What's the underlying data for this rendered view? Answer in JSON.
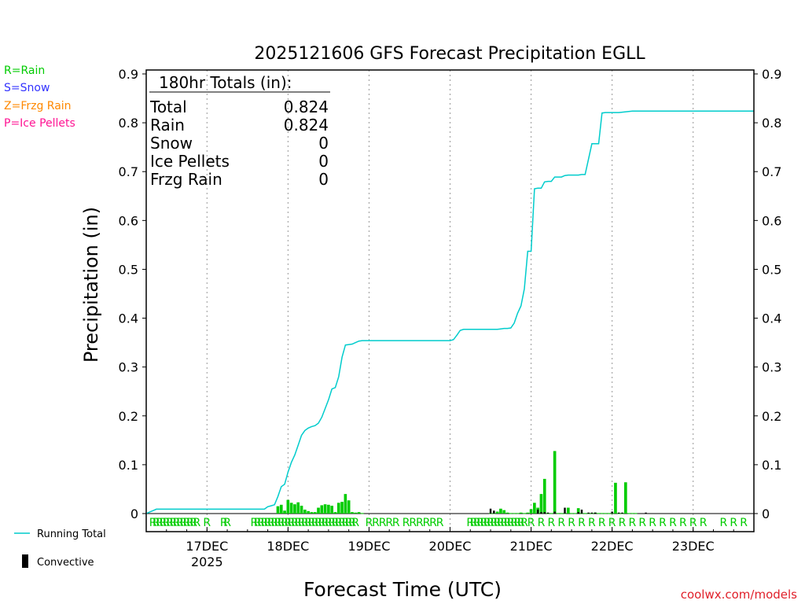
{
  "chart_data": {
    "type": "bar+line",
    "title": "2025121606 GFS Forecast Precipitation EGLL",
    "ylabel": "Precipitation (in)",
    "xlabel": "Forecast Time (UTC)",
    "ylim": [
      0,
      0.9
    ],
    "yticks": [
      "0",
      "0.1",
      "0.2",
      "0.3",
      "0.4",
      "0.5",
      "0.6",
      "0.7",
      "0.8",
      "0.9"
    ],
    "xrange_hours": [
      0,
      180
    ],
    "xticks": [
      {
        "hour": 18,
        "label": "17DEC",
        "sublabel": "2025"
      },
      {
        "hour": 42,
        "label": "18DEC",
        "sublabel": ""
      },
      {
        "hour": 66,
        "label": "19DEC",
        "sublabel": ""
      },
      {
        "hour": 90,
        "label": "20DEC",
        "sublabel": ""
      },
      {
        "hour": 114,
        "label": "21DEC",
        "sublabel": ""
      },
      {
        "hour": 138,
        "label": "22DEC",
        "sublabel": ""
      },
      {
        "hour": 162,
        "label": "23DEC",
        "sublabel": ""
      }
    ],
    "totals": {
      "header": "180hr Totals (in):",
      "rows": [
        {
          "label": "Total",
          "value": "0.824"
        },
        {
          "label": "Rain",
          "value": "0.824"
        },
        {
          "label": "Snow",
          "value": "0"
        },
        {
          "label": "Ice Pellets",
          "value": "0"
        },
        {
          "label": "Frzg Rain",
          "value": "0"
        }
      ]
    },
    "running_total": {
      "name": "Running Total",
      "color": "#00cccc",
      "x": [
        0,
        1,
        2,
        3,
        4,
        6,
        10,
        20,
        30,
        35,
        36,
        37,
        38,
        39,
        40,
        41,
        42,
        43,
        44,
        45,
        46,
        47,
        48,
        49,
        50,
        51,
        52,
        53,
        54,
        55,
        56,
        57,
        58,
        59,
        60,
        61,
        62,
        63,
        64,
        65,
        66,
        90,
        91,
        92,
        93,
        94,
        95,
        96,
        100,
        104,
        105,
        106,
        107,
        108,
        109,
        110,
        111,
        112,
        113,
        114,
        115,
        116,
        117,
        118,
        119,
        120,
        121,
        122,
        123,
        124,
        125,
        126,
        127,
        128,
        129,
        130,
        132,
        134,
        135,
        136,
        137,
        138,
        139,
        140,
        144,
        180
      ],
      "y": [
        0.0,
        0.003,
        0.006,
        0.009,
        0.009,
        0.009,
        0.009,
        0.009,
        0.009,
        0.009,
        0.014,
        0.016,
        0.018,
        0.035,
        0.055,
        0.06,
        0.085,
        0.105,
        0.12,
        0.14,
        0.16,
        0.17,
        0.175,
        0.178,
        0.18,
        0.185,
        0.197,
        0.215,
        0.233,
        0.255,
        0.258,
        0.28,
        0.32,
        0.345,
        0.346,
        0.347,
        0.35,
        0.353,
        0.354,
        0.354,
        0.354,
        0.354,
        0.356,
        0.365,
        0.375,
        0.377,
        0.377,
        0.377,
        0.377,
        0.377,
        0.378,
        0.379,
        0.379,
        0.38,
        0.39,
        0.41,
        0.425,
        0.46,
        0.537,
        0.537,
        0.665,
        0.666,
        0.666,
        0.679,
        0.68,
        0.68,
        0.689,
        0.689,
        0.689,
        0.692,
        0.693,
        0.693,
        0.693,
        0.693,
        0.694,
        0.694,
        0.757,
        0.757,
        0.82,
        0.821,
        0.821,
        0.821,
        0.821,
        0.821,
        0.824,
        0.824
      ]
    },
    "bars": {
      "name": "Rain",
      "color": "#00cc00",
      "hours": [
        39,
        40,
        41,
        42,
        43,
        44,
        45,
        46,
        47,
        48,
        49,
        50,
        51,
        52,
        53,
        54,
        55,
        56,
        57,
        58,
        59,
        60,
        61,
        62,
        63,
        64,
        65,
        66,
        102,
        103,
        104,
        105,
        106,
        107,
        108,
        109,
        110,
        111,
        112,
        113,
        114,
        115,
        116,
        117,
        118,
        119,
        120,
        121,
        122,
        123,
        124,
        125,
        126,
        127,
        128,
        129,
        130,
        131,
        132,
        133,
        134,
        135,
        136,
        137,
        138,
        139,
        140,
        141,
        142,
        143,
        144,
        145
      ],
      "values": [
        0.015,
        0.018,
        0.006,
        0.028,
        0.022,
        0.019,
        0.023,
        0.016,
        0.008,
        0.005,
        0.003,
        0.003,
        0.012,
        0.017,
        0.019,
        0.018,
        0.016,
        0.003,
        0.022,
        0.024,
        0.04,
        0.027,
        0.003,
        0.002,
        0.003,
        0.001,
        0,
        0,
        0.001,
        0.001,
        0.004,
        0.01,
        0.007,
        0.002,
        0.001,
        0.001,
        0.001,
        0.002,
        0.001,
        0.002,
        0.009,
        0.022,
        0.012,
        0.04,
        0.071,
        0.001,
        0.001,
        0.128,
        0.001,
        0.001,
        0.001,
        0.012,
        0.001,
        0.001,
        0.011,
        0.001,
        0.001,
        0.001,
        0.001,
        0.002,
        0.001,
        0.001,
        0.001,
        0.001,
        0.001,
        0.063,
        0.001,
        0.001,
        0.064,
        0.001,
        0.001,
        0.001
      ]
    },
    "convective": {
      "name": "Convective",
      "color": "#000000",
      "hours": [
        102,
        103,
        116,
        117,
        118,
        119,
        121,
        124,
        128,
        129,
        131,
        132,
        133,
        138,
        140,
        141,
        148
      ],
      "values": [
        0.01,
        0.006,
        0.008,
        0.003,
        0.003,
        0.002,
        0.004,
        0.012,
        0.003,
        0.008,
        0.002,
        0.002,
        0.002,
        0.004,
        0.002,
        0.002,
        0.002
      ]
    },
    "precip_type_marks": {
      "dense_ranges": [
        [
          2,
          15
        ],
        [
          32,
          62
        ],
        [
          96,
          112
        ]
      ],
      "sparse_hours": [
        18,
        23,
        24,
        66,
        68,
        70,
        72,
        74,
        77,
        79,
        81,
        83,
        85,
        87,
        114,
        117,
        120,
        123,
        126,
        129,
        132,
        135,
        138,
        141,
        144,
        147,
        150,
        153,
        156,
        159,
        162,
        165,
        171,
        174,
        177
      ],
      "letter": "R",
      "color": "#00cc00"
    },
    "precip_type_legend": [
      {
        "text": "R=Rain",
        "color": "#00cc00"
      },
      {
        "text": "S=Snow",
        "color": "#3333ff"
      },
      {
        "text": "Z=Frzg Rain",
        "color": "#ff8800"
      },
      {
        "text": "P=Ice Pellets",
        "color": "#ff1493"
      }
    ],
    "series_legend": [
      {
        "label": "Running Total",
        "color": "#00cccc"
      },
      {
        "label": "Convective",
        "color": "#000000"
      }
    ],
    "credit": "coolwx.com/models"
  }
}
